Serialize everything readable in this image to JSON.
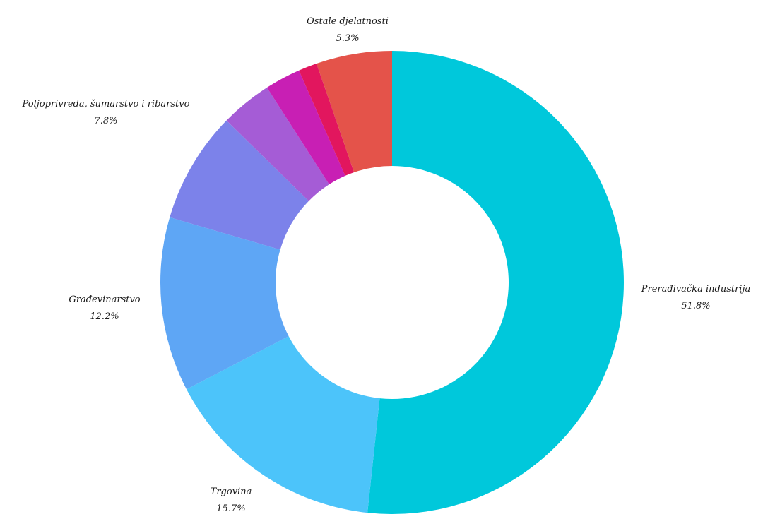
{
  "chart_data": {
    "type": "pie",
    "donut": true,
    "title": "",
    "segments": [
      {
        "label": "Prerađivačka industrija",
        "value": 51.8,
        "display": "51.8%",
        "color": "#00c8db",
        "show_label": true
      },
      {
        "label": "Trgovina",
        "value": 15.7,
        "display": "15.7%",
        "color": "#4cc4fa",
        "show_label": true
      },
      {
        "label": "Građevinarstvo",
        "value": 12.2,
        "display": "12.2%",
        "color": "#5ea6f5",
        "show_label": true
      },
      {
        "label": "Poljoprivreda, šumarstvo i ribarstvo",
        "value": 7.8,
        "display": "7.8%",
        "color": "#7c82ea",
        "show_label": true
      },
      {
        "label": "",
        "value": 3.6,
        "display": "",
        "color": "#a55cd6",
        "show_label": false
      },
      {
        "label": "",
        "value": 2.5,
        "display": "",
        "color": "#c81fb4",
        "show_label": false
      },
      {
        "label": "",
        "value": 1.3,
        "display": "",
        "color": "#e2165e",
        "show_label": false
      },
      {
        "label": "Ostale djelatnosti",
        "value": 5.3,
        "display": "5.3%",
        "color": "#e4534a",
        "show_label": true
      }
    ],
    "legend": "none"
  }
}
